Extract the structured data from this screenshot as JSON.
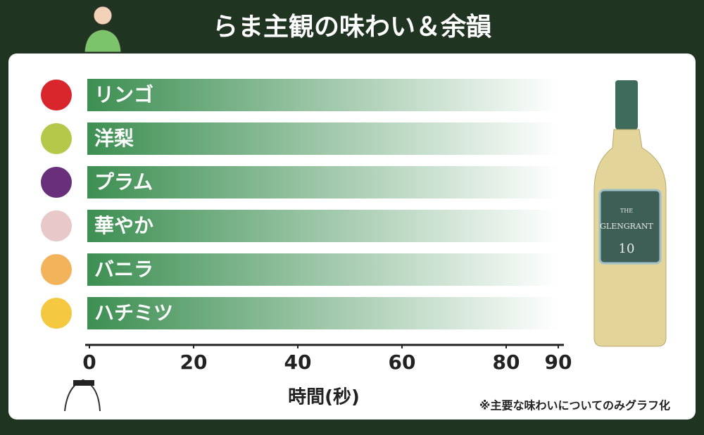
{
  "chart_data": {
    "type": "hbar",
    "title": "らま主観の味わい＆余韻",
    "categories": [
      "リンゴ",
      "洋梨",
      "プラム",
      "華やか",
      "バニラ",
      "ハチミツ"
    ],
    "values": [
      90,
      90,
      90,
      90,
      90,
      90
    ],
    "color": "#3d8f52",
    "xlim": [
      0,
      90
    ],
    "xticks": [
      0,
      20,
      40,
      60,
      80,
      90
    ],
    "xlabel": "時間(秒)",
    "note": "※主要な味わいについてのみグラフ化",
    "bottle_label": [
      "THE",
      "GLENGRANT",
      "10"
    ]
  }
}
